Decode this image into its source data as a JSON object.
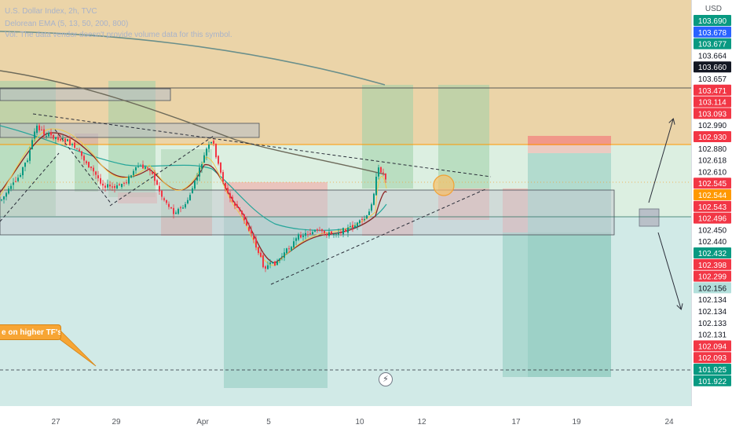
{
  "legend": {
    "title": "U.S. Dollar Index, 2h, TVC",
    "indicator": "Delorean EMA (5, 13, 50, 200, 800)",
    "volume_note": "Vol: The data vendor doesn't provide volume data for this symbol."
  },
  "annotation": {
    "callout_text": "e on higher TF's"
  },
  "icons": {
    "lightning": "lightning-icon"
  },
  "chart_data": {
    "type": "candlestick",
    "symbol": "U.S. Dollar Index",
    "timeframe": "2h",
    "currency_label": "USD",
    "time_axis_labels": [
      "27",
      "29",
      "Apr",
      "5",
      "10",
      "12",
      "17",
      "19",
      "24"
    ],
    "price_axis_labels": [
      {
        "value": "103.690",
        "bg": "#089981",
        "fg": "#ffffff"
      },
      {
        "value": "103.678",
        "bg": "#2962ff",
        "fg": "#ffffff"
      },
      {
        "value": "103.677",
        "bg": "#089981",
        "fg": "#ffffff"
      },
      {
        "value": "103.664",
        "bg": "#ffffff",
        "fg": "#131722"
      },
      {
        "value": "103.660",
        "bg": "#131722",
        "fg": "#ffffff"
      },
      {
        "value": "103.657",
        "bg": "#ffffff",
        "fg": "#131722"
      },
      {
        "value": "103.471",
        "bg": "#f23645",
        "fg": "#ffffff"
      },
      {
        "value": "103.114",
        "bg": "#f23645",
        "fg": "#ffffff"
      },
      {
        "value": "103.093",
        "bg": "#f23645",
        "fg": "#ffffff"
      },
      {
        "value": "102.990",
        "bg": "#ffffff",
        "fg": "#131722"
      },
      {
        "value": "102.930",
        "bg": "#f23645",
        "fg": "#ffffff"
      },
      {
        "value": "102.880",
        "bg": "#ffffff",
        "fg": "#131722"
      },
      {
        "value": "102.618",
        "bg": "#ffffff",
        "fg": "#131722"
      },
      {
        "value": "102.610",
        "bg": "#ffffff",
        "fg": "#131722"
      },
      {
        "value": "102.545",
        "bg": "#f23645",
        "fg": "#ffffff"
      },
      {
        "value": "102.544",
        "bg": "#ff9800",
        "fg": "#ffffff"
      },
      {
        "value": "102.543",
        "bg": "#f23645",
        "fg": "#ffffff"
      },
      {
        "value": "102.496",
        "bg": "#f23645",
        "fg": "#ffffff"
      },
      {
        "value": "102.450",
        "bg": "#ffffff",
        "fg": "#131722"
      },
      {
        "value": "102.440",
        "bg": "#ffffff",
        "fg": "#131722"
      },
      {
        "value": "102.432",
        "bg": "#089981",
        "fg": "#ffffff"
      },
      {
        "value": "102.398",
        "bg": "#f23645",
        "fg": "#ffffff"
      },
      {
        "value": "102.299",
        "bg": "#f23645",
        "fg": "#ffffff"
      },
      {
        "value": "102.156",
        "bg": "#b2dfdb",
        "fg": "#131722"
      },
      {
        "value": "102.134",
        "bg": "#ffffff",
        "fg": "#131722"
      },
      {
        "value": "102.134",
        "bg": "#ffffff",
        "fg": "#131722"
      },
      {
        "value": "102.133",
        "bg": "#ffffff",
        "fg": "#131722"
      },
      {
        "value": "102.131",
        "bg": "#ffffff",
        "fg": "#131722"
      },
      {
        "value": "102.094",
        "bg": "#f23645",
        "fg": "#ffffff"
      },
      {
        "value": "102.093",
        "bg": "#f23645",
        "fg": "#ffffff"
      },
      {
        "value": "101.925",
        "bg": "#089981",
        "fg": "#ffffff"
      },
      {
        "value": "101.922",
        "bg": "#089981",
        "fg": "#ffffff"
      }
    ],
    "colors": {
      "bull": "#089981",
      "bear": "#f23645",
      "ema_fast": "#f2c94c",
      "ema_mid": "#8d2424",
      "ema_slow": "#26a69a",
      "ema_200": "#6d6a5a",
      "ema_800": "#7a9a96",
      "supply_zone": "#e8cc99",
      "demand_zone": "#cfeae6",
      "orange_line": "#ff9800"
    }
  }
}
